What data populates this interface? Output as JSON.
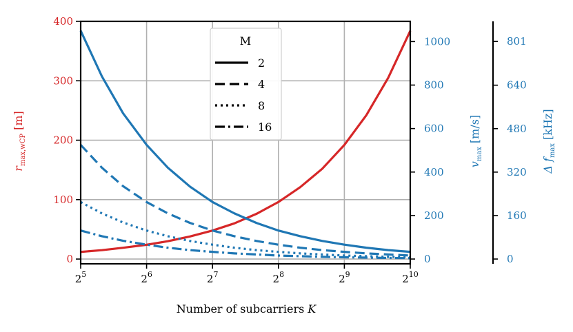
{
  "chart_data": {
    "type": "line",
    "xlabel_text": "Number of subcarriers",
    "xlabel_var": "K",
    "x_exponents": [
      5,
      6,
      7,
      8,
      9,
      10
    ],
    "x_base": "2",
    "x": [
      32,
      64,
      128,
      256,
      512,
      1024
    ],
    "axes": {
      "left": {
        "label_var": "r",
        "label_sub": "max,wCP",
        "label_unit": "[m]",
        "color": "#d62728",
        "ticks": [
          0,
          100,
          200,
          300,
          400
        ],
        "range": [
          -8,
          400
        ]
      },
      "right1": {
        "label_var": "v",
        "label_sub": "max",
        "label_unit": "[m/s]",
        "color": "#1f77b4",
        "ticks": [
          0,
          200,
          400,
          600,
          800,
          1000
        ],
        "range": [
          -22,
          1093
        ]
      },
      "right2": {
        "label_var": "Δ f",
        "label_sub": "max",
        "label_unit": "[kHz]",
        "color": "#1f77b4",
        "ticks": [
          0,
          160,
          320,
          480,
          640,
          801
        ],
        "range": [
          -17.6,
          875
        ]
      }
    },
    "series": [
      {
        "name": "r_max,wCP",
        "axis": "left",
        "color": "#d62728",
        "dash": "solid",
        "x": [
          32,
          40,
          50,
          64,
          80,
          101,
          128,
          161,
          203,
          256,
          322,
          406,
          512,
          645,
          812,
          1024
        ],
        "values": [
          12,
          15,
          19,
          24,
          30,
          38,
          48,
          60,
          76,
          96,
          121,
          152,
          192,
          242,
          305,
          384
        ]
      },
      {
        "name": "v_max, M=2",
        "axis": "right1",
        "color": "#1f77b4",
        "dash": "solid",
        "legend_label": "2",
        "x": [
          32,
          40,
          50,
          64,
          80,
          101,
          128,
          161,
          203,
          256,
          322,
          406,
          512,
          645,
          812,
          1024
        ],
        "values": [
          1050,
          840,
          670,
          525,
          420,
          333,
          262,
          210,
          166,
          131,
          105,
          83,
          66,
          52,
          41,
          33
        ]
      },
      {
        "name": "v_max, M=4",
        "axis": "right1",
        "color": "#1f77b4",
        "dash": "dashed",
        "legend_label": "4",
        "x": [
          32,
          40,
          50,
          64,
          80,
          101,
          128,
          161,
          203,
          256,
          322,
          406,
          512,
          645,
          812,
          1024
        ],
        "values": [
          525,
          420,
          335,
          262,
          210,
          166,
          131,
          105,
          83,
          66,
          52,
          41,
          33,
          26,
          21,
          16
        ]
      },
      {
        "name": "v_max, M=8",
        "axis": "right1",
        "color": "#1f77b4",
        "dash": "dotted",
        "legend_label": "8",
        "x": [
          32,
          40,
          50,
          64,
          80,
          101,
          128,
          161,
          203,
          256,
          322,
          406,
          512,
          645,
          812,
          1024
        ],
        "values": [
          262,
          210,
          168,
          131,
          105,
          83,
          66,
          52,
          41,
          33,
          26,
          21,
          16,
          13,
          10,
          8
        ]
      },
      {
        "name": "v_max, M=16",
        "axis": "right1",
        "color": "#1f77b4",
        "dash": "dashdot",
        "legend_label": "16",
        "x": [
          32,
          40,
          50,
          64,
          80,
          101,
          128,
          161,
          203,
          256,
          322,
          406,
          512,
          645,
          812,
          1024
        ],
        "values": [
          131,
          105,
          84,
          66,
          52,
          41,
          33,
          26,
          21,
          16,
          13,
          10,
          8,
          6.5,
          5,
          4
        ]
      }
    ],
    "legend": {
      "title": "M",
      "labels": [
        "2",
        "4",
        "8",
        "16"
      ],
      "placement": "top-center"
    },
    "grid": true
  }
}
